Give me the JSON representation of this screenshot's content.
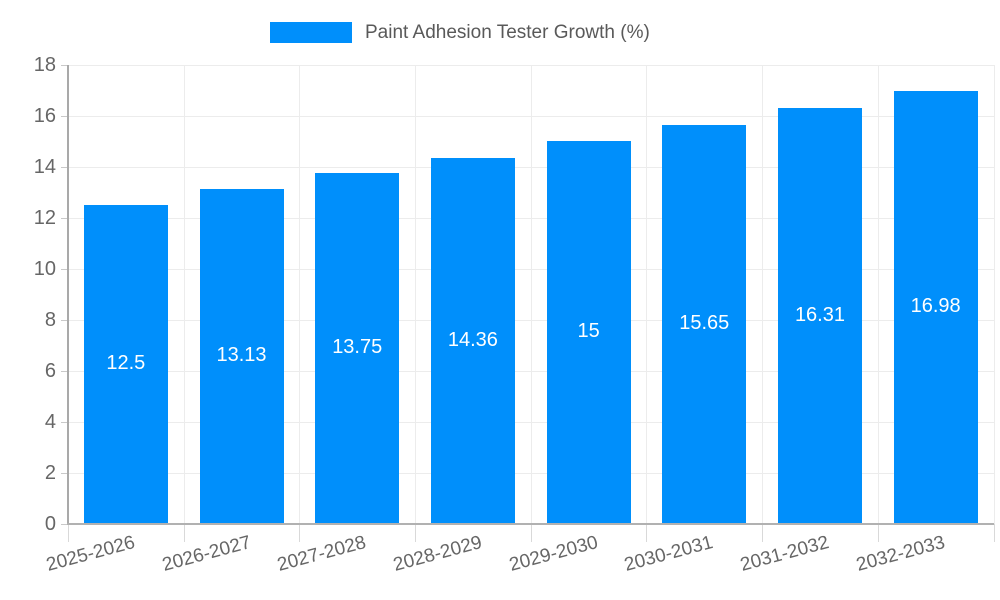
{
  "legend": {
    "label": "Paint Adhesion Tester Growth (%)",
    "swatch_color": "#008FFB"
  },
  "chart_data": {
    "type": "bar",
    "title": "Paint Adhesion Tester Growth (%)",
    "categories": [
      "2025-2026",
      "2026-2027",
      "2027-2028",
      "2028-2029",
      "2029-2030",
      "2030-2031",
      "2031-2032",
      "2032-2033"
    ],
    "series": [
      {
        "name": "Paint Adhesion Tester Growth (%)",
        "values": [
          12.5,
          13.13,
          13.75,
          14.36,
          15,
          15.65,
          16.31,
          16.98
        ]
      }
    ],
    "bar_labels": [
      "12.5",
      "13.13",
      "13.75",
      "14.36",
      "15",
      "15.65",
      "16.31",
      "16.98"
    ],
    "xlabel": "",
    "ylabel": "",
    "ylim": [
      0,
      18
    ],
    "yticks": [
      0,
      2,
      4,
      6,
      8,
      10,
      12,
      14,
      16,
      18
    ],
    "grid": true,
    "legend_position": "top",
    "colors": {
      "bar": "#008FFB",
      "bar_label": "#FFFFFF",
      "grid_line": "#ECECEC",
      "axis_line": "#B1B1B1",
      "tick_label": "#666666",
      "legend_text": "#595959"
    }
  }
}
